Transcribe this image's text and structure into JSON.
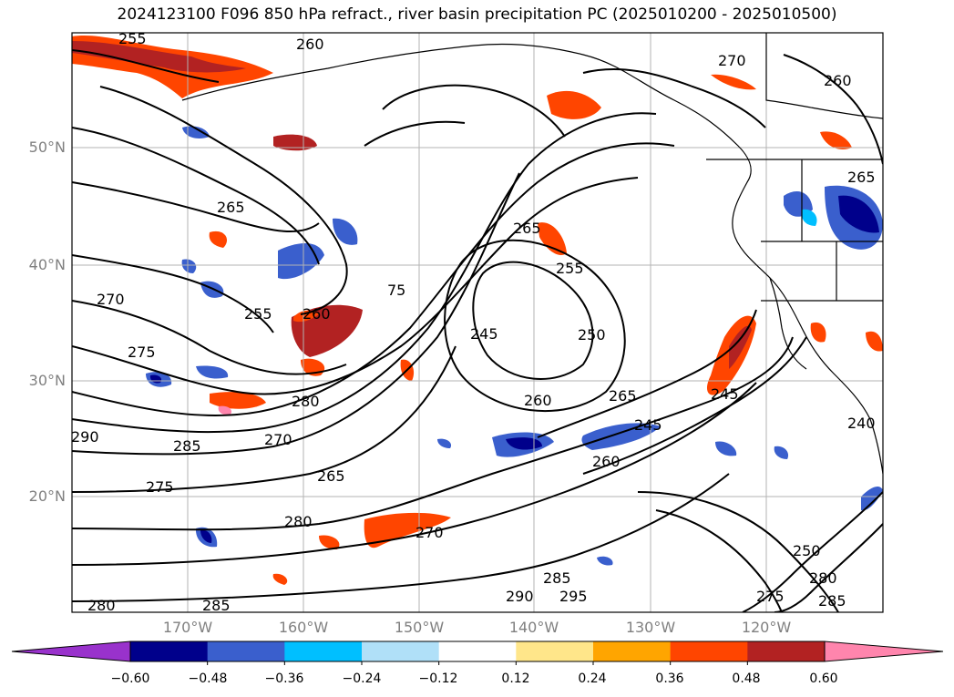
{
  "title": "2024123100 F096 850 hPa refract., river basin precipitation PC (2025010200 - 2025010500)",
  "lat_labels": [
    "50°N",
    "40°N",
    "30°N",
    "20°N"
  ],
  "lon_labels": [
    "170°W",
    "160°W",
    "150°W",
    "140°W",
    "130°W",
    "120°W"
  ],
  "contour_labels": [
    "255",
    "260",
    "265",
    "270",
    "275",
    "280",
    "285",
    "290",
    "295",
    "245",
    "250",
    "265",
    "260",
    "255",
    "245",
    "240",
    "265",
    "245",
    "260",
    "270",
    "275",
    "280",
    "265"
  ],
  "colorbar": {
    "tick_labels": [
      "−0.60",
      "−0.48",
      "−0.36",
      "−0.24",
      "−0.12",
      "0.12",
      "0.24",
      "0.36",
      "0.48",
      "0.60"
    ],
    "colors": [
      "#9932cc",
      "#00008b",
      "#3a5fcd",
      "#00bfff",
      "#b0e0f8",
      "#ffffff",
      "#ffe68a",
      "#ffa500",
      "#ff4500",
      "#b22222",
      "#ff85ad"
    ],
    "extend": "both"
  },
  "map_colors": {
    "coast": "#000000",
    "grid": "#b3b3b3",
    "contour": "#000000"
  }
}
